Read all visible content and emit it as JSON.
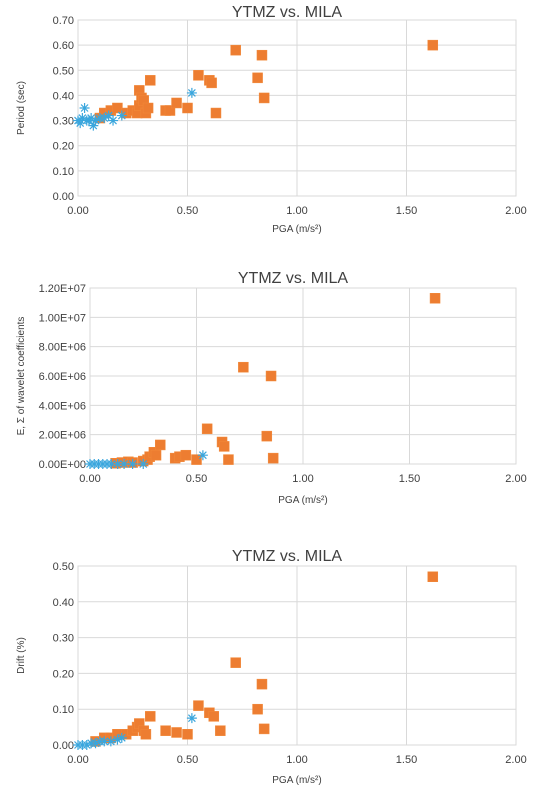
{
  "colors": {
    "series_a": "#ed7d31",
    "series_b": "#3aa6dd"
  },
  "chart_data": [
    {
      "type": "scatter",
      "title": "YTMZ vs. MILA",
      "xlabel": "PGA (m/s²)",
      "ylabel": "Period (sec)",
      "xlim": [
        0,
        2
      ],
      "ylim": [
        0,
        0.7
      ],
      "xticks": [
        "0.00",
        "0.50",
        "1.00",
        "1.50",
        "2.00"
      ],
      "yticks": [
        "0.00",
        "0.10",
        "0.20",
        "0.30",
        "0.40",
        "0.50",
        "0.60",
        "0.70"
      ],
      "grid": true,
      "series": [
        {
          "marker": "square",
          "points": [
            [
              0.1,
              0.31
            ],
            [
              0.12,
              0.33
            ],
            [
              0.15,
              0.34
            ],
            [
              0.18,
              0.35
            ],
            [
              0.22,
              0.33
            ],
            [
              0.25,
              0.34
            ],
            [
              0.27,
              0.33
            ],
            [
              0.28,
              0.36
            ],
            [
              0.28,
              0.42
            ],
            [
              0.29,
              0.39
            ],
            [
              0.3,
              0.38
            ],
            [
              0.31,
              0.33
            ],
            [
              0.32,
              0.35
            ],
            [
              0.33,
              0.46
            ],
            [
              0.4,
              0.34
            ],
            [
              0.42,
              0.34
            ],
            [
              0.45,
              0.37
            ],
            [
              0.5,
              0.35
            ],
            [
              0.55,
              0.48
            ],
            [
              0.6,
              0.46
            ],
            [
              0.61,
              0.45
            ],
            [
              0.63,
              0.33
            ],
            [
              0.72,
              0.58
            ],
            [
              0.82,
              0.47
            ],
            [
              0.84,
              0.56
            ],
            [
              0.85,
              0.39
            ],
            [
              1.62,
              0.6
            ]
          ]
        },
        {
          "marker": "star",
          "points": [
            [
              0.0,
              0.3
            ],
            [
              0.01,
              0.29
            ],
            [
              0.02,
              0.31
            ],
            [
              0.03,
              0.35
            ],
            [
              0.04,
              0.3
            ],
            [
              0.05,
              0.3
            ],
            [
              0.06,
              0.31
            ],
            [
              0.07,
              0.28
            ],
            [
              0.08,
              0.3
            ],
            [
              0.1,
              0.31
            ],
            [
              0.12,
              0.31
            ],
            [
              0.14,
              0.32
            ],
            [
              0.16,
              0.3
            ],
            [
              0.2,
              0.32
            ],
            [
              0.52,
              0.41
            ]
          ]
        }
      ]
    },
    {
      "type": "scatter",
      "title": "YTMZ vs. MILA",
      "xlabel": "PGA (m/s²)",
      "ylabel": "E, Σ of wavelet coefficients",
      "xlim": [
        0,
        2
      ],
      "ylim": [
        0,
        12000000
      ],
      "xticks": [
        "0.00",
        "0.50",
        "1.00",
        "1.50",
        "2.00"
      ],
      "yticks": [
        "0.00E+00",
        "2.00E+06",
        "4.00E+06",
        "6.00E+06",
        "8.00E+06",
        "1.00E+07",
        "1.20E+07"
      ],
      "grid": true,
      "series": [
        {
          "marker": "square",
          "points": [
            [
              0.12,
              50000
            ],
            [
              0.15,
              100000
            ],
            [
              0.18,
              150000
            ],
            [
              0.2,
              100000
            ],
            [
              0.25,
              200000
            ],
            [
              0.27,
              300000
            ],
            [
              0.28,
              500000
            ],
            [
              0.3,
              800000
            ],
            [
              0.31,
              600000
            ],
            [
              0.33,
              1300000
            ],
            [
              0.4,
              400000
            ],
            [
              0.42,
              500000
            ],
            [
              0.45,
              600000
            ],
            [
              0.5,
              300000
            ],
            [
              0.55,
              2400000
            ],
            [
              0.62,
              1500000
            ],
            [
              0.63,
              1200000
            ],
            [
              0.65,
              300000
            ],
            [
              0.72,
              6600000
            ],
            [
              0.83,
              1900000
            ],
            [
              0.85,
              6000000
            ],
            [
              0.86,
              400000
            ],
            [
              1.62,
              11300000
            ]
          ]
        },
        {
          "marker": "star",
          "points": [
            [
              0.0,
              0
            ],
            [
              0.02,
              0
            ],
            [
              0.04,
              0
            ],
            [
              0.06,
              0
            ],
            [
              0.08,
              0
            ],
            [
              0.1,
              0
            ],
            [
              0.13,
              0
            ],
            [
              0.16,
              0
            ],
            [
              0.2,
              0
            ],
            [
              0.25,
              0
            ],
            [
              0.53,
              600000
            ]
          ]
        }
      ]
    },
    {
      "type": "scatter",
      "title": "YTMZ vs. MILA",
      "xlabel": "PGA (m/s²)",
      "ylabel": "Drift (%)",
      "xlim": [
        0,
        2
      ],
      "ylim": [
        0,
        0.5
      ],
      "xticks": [
        "0.00",
        "0.50",
        "1.00",
        "1.50",
        "2.00"
      ],
      "yticks": [
        "0.00",
        "0.10",
        "0.20",
        "0.30",
        "0.40",
        "0.50"
      ],
      "grid": true,
      "series": [
        {
          "marker": "square",
          "points": [
            [
              0.08,
              0.01
            ],
            [
              0.12,
              0.02
            ],
            [
              0.15,
              0.02
            ],
            [
              0.18,
              0.03
            ],
            [
              0.22,
              0.03
            ],
            [
              0.25,
              0.04
            ],
            [
              0.27,
              0.05
            ],
            [
              0.28,
              0.06
            ],
            [
              0.3,
              0.04
            ],
            [
              0.31,
              0.03
            ],
            [
              0.33,
              0.08
            ],
            [
              0.4,
              0.04
            ],
            [
              0.45,
              0.035
            ],
            [
              0.5,
              0.03
            ],
            [
              0.55,
              0.11
            ],
            [
              0.6,
              0.09
            ],
            [
              0.62,
              0.08
            ],
            [
              0.65,
              0.04
            ],
            [
              0.72,
              0.23
            ],
            [
              0.82,
              0.1
            ],
            [
              0.84,
              0.17
            ],
            [
              0.85,
              0.045
            ],
            [
              1.62,
              0.47
            ]
          ]
        },
        {
          "marker": "star",
          "points": [
            [
              0.0,
              0.0
            ],
            [
              0.02,
              0.0
            ],
            [
              0.04,
              0.0
            ],
            [
              0.06,
              0.005
            ],
            [
              0.08,
              0.005
            ],
            [
              0.1,
              0.01
            ],
            [
              0.12,
              0.01
            ],
            [
              0.15,
              0.01
            ],
            [
              0.18,
              0.015
            ],
            [
              0.2,
              0.02
            ],
            [
              0.52,
              0.075
            ]
          ]
        }
      ]
    }
  ]
}
